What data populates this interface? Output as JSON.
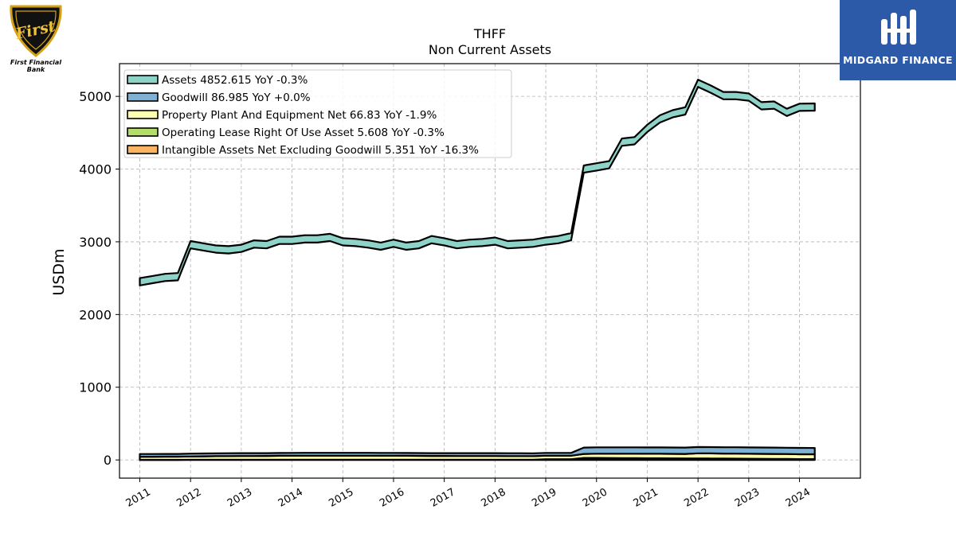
{
  "logos": {
    "left_brand": "First Financial Bank",
    "left_mark": "First",
    "right_brand": "MIDGARD FINANCE"
  },
  "chart_data": {
    "type": "area",
    "title": "THFF",
    "subtitle": "Non Current  Assets",
    "xlabel": "",
    "ylabel": "USDm",
    "ylim": [
      -250,
      5450
    ],
    "xlim": [
      2010.6,
      2025.2
    ],
    "yticks": [
      0,
      1000,
      2000,
      3000,
      4000,
      5000
    ],
    "xticks": [
      "2011",
      "2012",
      "2013",
      "2014",
      "2015",
      "2016",
      "2017",
      "2018",
      "2019",
      "2020",
      "2021",
      "2022",
      "2023",
      "2024"
    ],
    "grid": true,
    "legend_position": "top-left",
    "x": [
      2011.0,
      2011.25,
      2011.5,
      2011.75,
      2012.0,
      2012.25,
      2012.5,
      2012.75,
      2013.0,
      2013.25,
      2013.5,
      2013.75,
      2014.0,
      2014.25,
      2014.5,
      2014.75,
      2015.0,
      2015.25,
      2015.5,
      2015.75,
      2016.0,
      2016.25,
      2016.5,
      2016.75,
      2017.0,
      2017.25,
      2017.5,
      2017.75,
      2018.0,
      2018.25,
      2018.5,
      2018.75,
      2019.0,
      2019.25,
      2019.5,
      2019.75,
      2020.0,
      2020.25,
      2020.5,
      2020.75,
      2021.0,
      2021.25,
      2021.5,
      2021.75,
      2022.0,
      2022.25,
      2022.5,
      2022.75,
      2023.0,
      2023.25,
      2023.5,
      2023.75,
      2024.0,
      2024.3
    ],
    "series": [
      {
        "name": "Assets",
        "legend": "Assets  4852.615 YoY -0.3%",
        "color": "#8dd3c7",
        "values": [
          2450,
          2480,
          2510,
          2520,
          2960,
          2930,
          2900,
          2890,
          2910,
          2970,
          2960,
          3020,
          3020,
          3040,
          3040,
          3060,
          3000,
          2990,
          2970,
          2940,
          2980,
          2940,
          2960,
          3030,
          3000,
          2960,
          2980,
          2990,
          3010,
          2960,
          2970,
          2980,
          3010,
          3030,
          3070,
          4000,
          4030,
          4060,
          4370,
          4390,
          4560,
          4690,
          4760,
          4800,
          5180,
          5100,
          5010,
          5010,
          4990,
          4870,
          4880,
          4780,
          4850,
          4853
        ]
      },
      {
        "name": "Goodwill",
        "legend": "Goodwill  86.985 YoY +0.0%",
        "color": "#80b1d3",
        "values": [
          38,
          38,
          38,
          38,
          39,
          39,
          39,
          39,
          39,
          39,
          39,
          39,
          39,
          39,
          39,
          39,
          39,
          39,
          39,
          39,
          39,
          39,
          39,
          39,
          39,
          39,
          39,
          39,
          39,
          39,
          39,
          39,
          39,
          39,
          39,
          87,
          87,
          87,
          87,
          87,
          87,
          87,
          87,
          87,
          87,
          87,
          87,
          87,
          87,
          87,
          87,
          87,
          87,
          87
        ]
      },
      {
        "name": "Property Plant And Equipment Net",
        "legend": "Property Plant And Equipment Net  66.83 YoY -1.9%",
        "color": "#ffffb3",
        "values": [
          42,
          42,
          43,
          43,
          44,
          46,
          48,
          49,
          50,
          50,
          51,
          53,
          54,
          55,
          55,
          55,
          55,
          55,
          55,
          54,
          54,
          53,
          52,
          51,
          51,
          50,
          50,
          50,
          50,
          49,
          49,
          48,
          48,
          48,
          48,
          55,
          58,
          59,
          60,
          61,
          61,
          62,
          62,
          62,
          70,
          70,
          69,
          69,
          68,
          68,
          68,
          67,
          67,
          67
        ]
      },
      {
        "name": "Operating Lease Right Of Use Asset",
        "legend": "Operating Lease Right Of Use Asset  5.608 YoY -0.3%",
        "color": "#b3de69",
        "values": [
          0,
          0,
          0,
          0,
          0,
          0,
          0,
          0,
          0,
          0,
          0,
          0,
          0,
          0,
          0,
          0,
          0,
          0,
          0,
          0,
          0,
          0,
          0,
          0,
          0,
          0,
          0,
          0,
          0,
          0,
          0,
          0,
          6,
          6,
          6,
          6,
          6,
          6,
          6,
          6,
          6,
          6,
          6,
          6,
          6,
          6,
          6,
          6,
          6,
          6,
          6,
          6,
          5.6,
          5.6
        ]
      },
      {
        "name": "Intangible Assets Net Excluding Goodwill",
        "legend": "Intangible Assets Net Excluding Goodwill  5.351 YoY -16.3%",
        "color": "#fdb462",
        "values": [
          2,
          2,
          2,
          2,
          4,
          4,
          4,
          4,
          4,
          4,
          4,
          4,
          4,
          4,
          4,
          4,
          4,
          4,
          4,
          4,
          4,
          4,
          4,
          4,
          4,
          4,
          4,
          4,
          4,
          4,
          4,
          4,
          4,
          4,
          4,
          22,
          22,
          21,
          20,
          19,
          18,
          17,
          16,
          15,
          15,
          14,
          13,
          12,
          11,
          10,
          9,
          8,
          6,
          5.4
        ]
      }
    ]
  }
}
